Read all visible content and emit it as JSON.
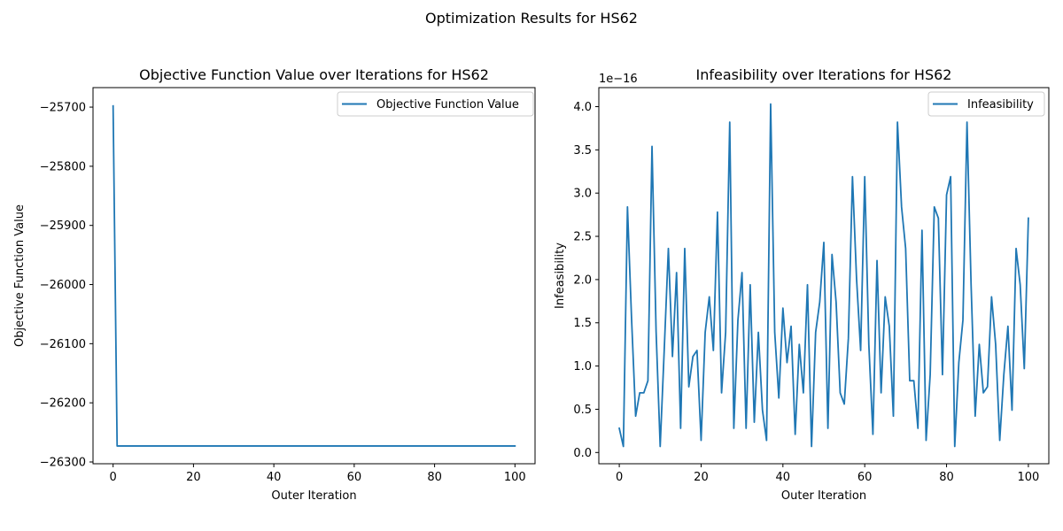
{
  "suptitle": "Optimization Results for HS62",
  "chart_data": [
    {
      "type": "line",
      "title": "Objective Function Value over Iterations for HS62",
      "xlabel": "Outer Iteration",
      "ylabel": "Objective Function Value",
      "xlim": [
        -5,
        105
      ],
      "ylim": [
        -26303,
        -25667
      ],
      "xticks": [
        0,
        20,
        40,
        60,
        80,
        100
      ],
      "xtick_labels": [
        "0",
        "20",
        "40",
        "60",
        "80",
        "100"
      ],
      "yticks": [
        -25700,
        -25800,
        -25900,
        -26000,
        -26100,
        -26200,
        -26300
      ],
      "ytick_labels": [
        "−25700",
        "−25800",
        "−25900",
        "−26000",
        "−26100",
        "−26200",
        "−26300"
      ],
      "legend": {
        "placement": "upper-right"
      },
      "grid": false,
      "series": [
        {
          "name": "Objective Function Value",
          "color": "#1f77b4",
          "x": [
            0,
            1,
            100
          ],
          "y": [
            -25698,
            -26273,
            -26273
          ]
        }
      ]
    },
    {
      "type": "line",
      "title": "Infeasibility over Iterations for HS62",
      "xlabel": "Outer Iteration",
      "ylabel": "Infeasibility",
      "offset_label": "1e−16",
      "xlim": [
        -5,
        105
      ],
      "ylim": [
        -0.13,
        4.22
      ],
      "xticks": [
        0,
        20,
        40,
        60,
        80,
        100
      ],
      "xtick_labels": [
        "0",
        "20",
        "40",
        "60",
        "80",
        "100"
      ],
      "yticks": [
        0.0,
        0.5,
        1.0,
        1.5,
        2.0,
        2.5,
        3.0,
        3.5,
        4.0
      ],
      "ytick_labels": [
        "0.0",
        "0.5",
        "1.0",
        "1.5",
        "2.0",
        "2.5",
        "3.0",
        "3.5",
        "4.0"
      ],
      "legend": {
        "placement": "upper-right"
      },
      "grid": false,
      "series": [
        {
          "name": "Infeasibility",
          "color": "#1f77b4",
          "x": [
            0,
            1,
            2,
            3,
            4,
            5,
            6,
            7,
            8,
            9,
            10,
            11,
            12,
            13,
            14,
            15,
            16,
            17,
            18,
            19,
            20,
            21,
            22,
            23,
            24,
            25,
            26,
            27,
            28,
            29,
            30,
            31,
            32,
            33,
            34,
            35,
            36,
            37,
            38,
            39,
            40,
            41,
            42,
            43,
            44,
            45,
            46,
            47,
            48,
            49,
            50,
            51,
            52,
            53,
            54,
            55,
            56,
            57,
            58,
            59,
            60,
            61,
            62,
            63,
            64,
            65,
            66,
            67,
            68,
            69,
            70,
            71,
            72,
            73,
            74,
            75,
            76,
            77,
            78,
            79,
            80,
            81,
            82,
            83,
            84,
            85,
            86,
            87,
            88,
            89,
            90,
            91,
            92,
            93,
            94,
            95,
            96,
            97,
            98,
            99,
            100
          ],
          "y": [
            0.28,
            0.07,
            2.84,
            1.55,
            0.42,
            0.69,
            0.69,
            0.83,
            3.54,
            1.4,
            0.07,
            1.2,
            2.36,
            1.11,
            2.08,
            0.28,
            2.36,
            0.76,
            1.11,
            1.18,
            0.14,
            1.39,
            1.8,
            1.18,
            2.78,
            0.69,
            1.39,
            3.82,
            0.28,
            1.53,
            2.08,
            0.28,
            1.94,
            0.35,
            1.39,
            0.49,
            0.14,
            4.03,
            1.39,
            0.63,
            1.67,
            1.04,
            1.46,
            0.21,
            1.25,
            0.69,
            1.94,
            0.07,
            1.39,
            1.74,
            2.43,
            0.28,
            2.29,
            1.74,
            0.69,
            0.56,
            1.32,
            3.19,
            2.01,
            1.18,
            3.19,
            1.25,
            0.21,
            2.22,
            0.69,
            1.8,
            1.46,
            0.42,
            3.82,
            2.84,
            2.36,
            0.83,
            0.83,
            0.28,
            2.57,
            0.14,
            0.9,
            2.84,
            2.71,
            0.9,
            2.98,
            3.19,
            0.07,
            1.04,
            1.53,
            3.82,
            1.94,
            0.42,
            1.25,
            0.69,
            0.76,
            1.8,
            1.25,
            0.14,
            0.9,
            1.46,
            0.49,
            2.36,
            1.94,
            0.97,
            2.71
          ]
        }
      ]
    }
  ]
}
